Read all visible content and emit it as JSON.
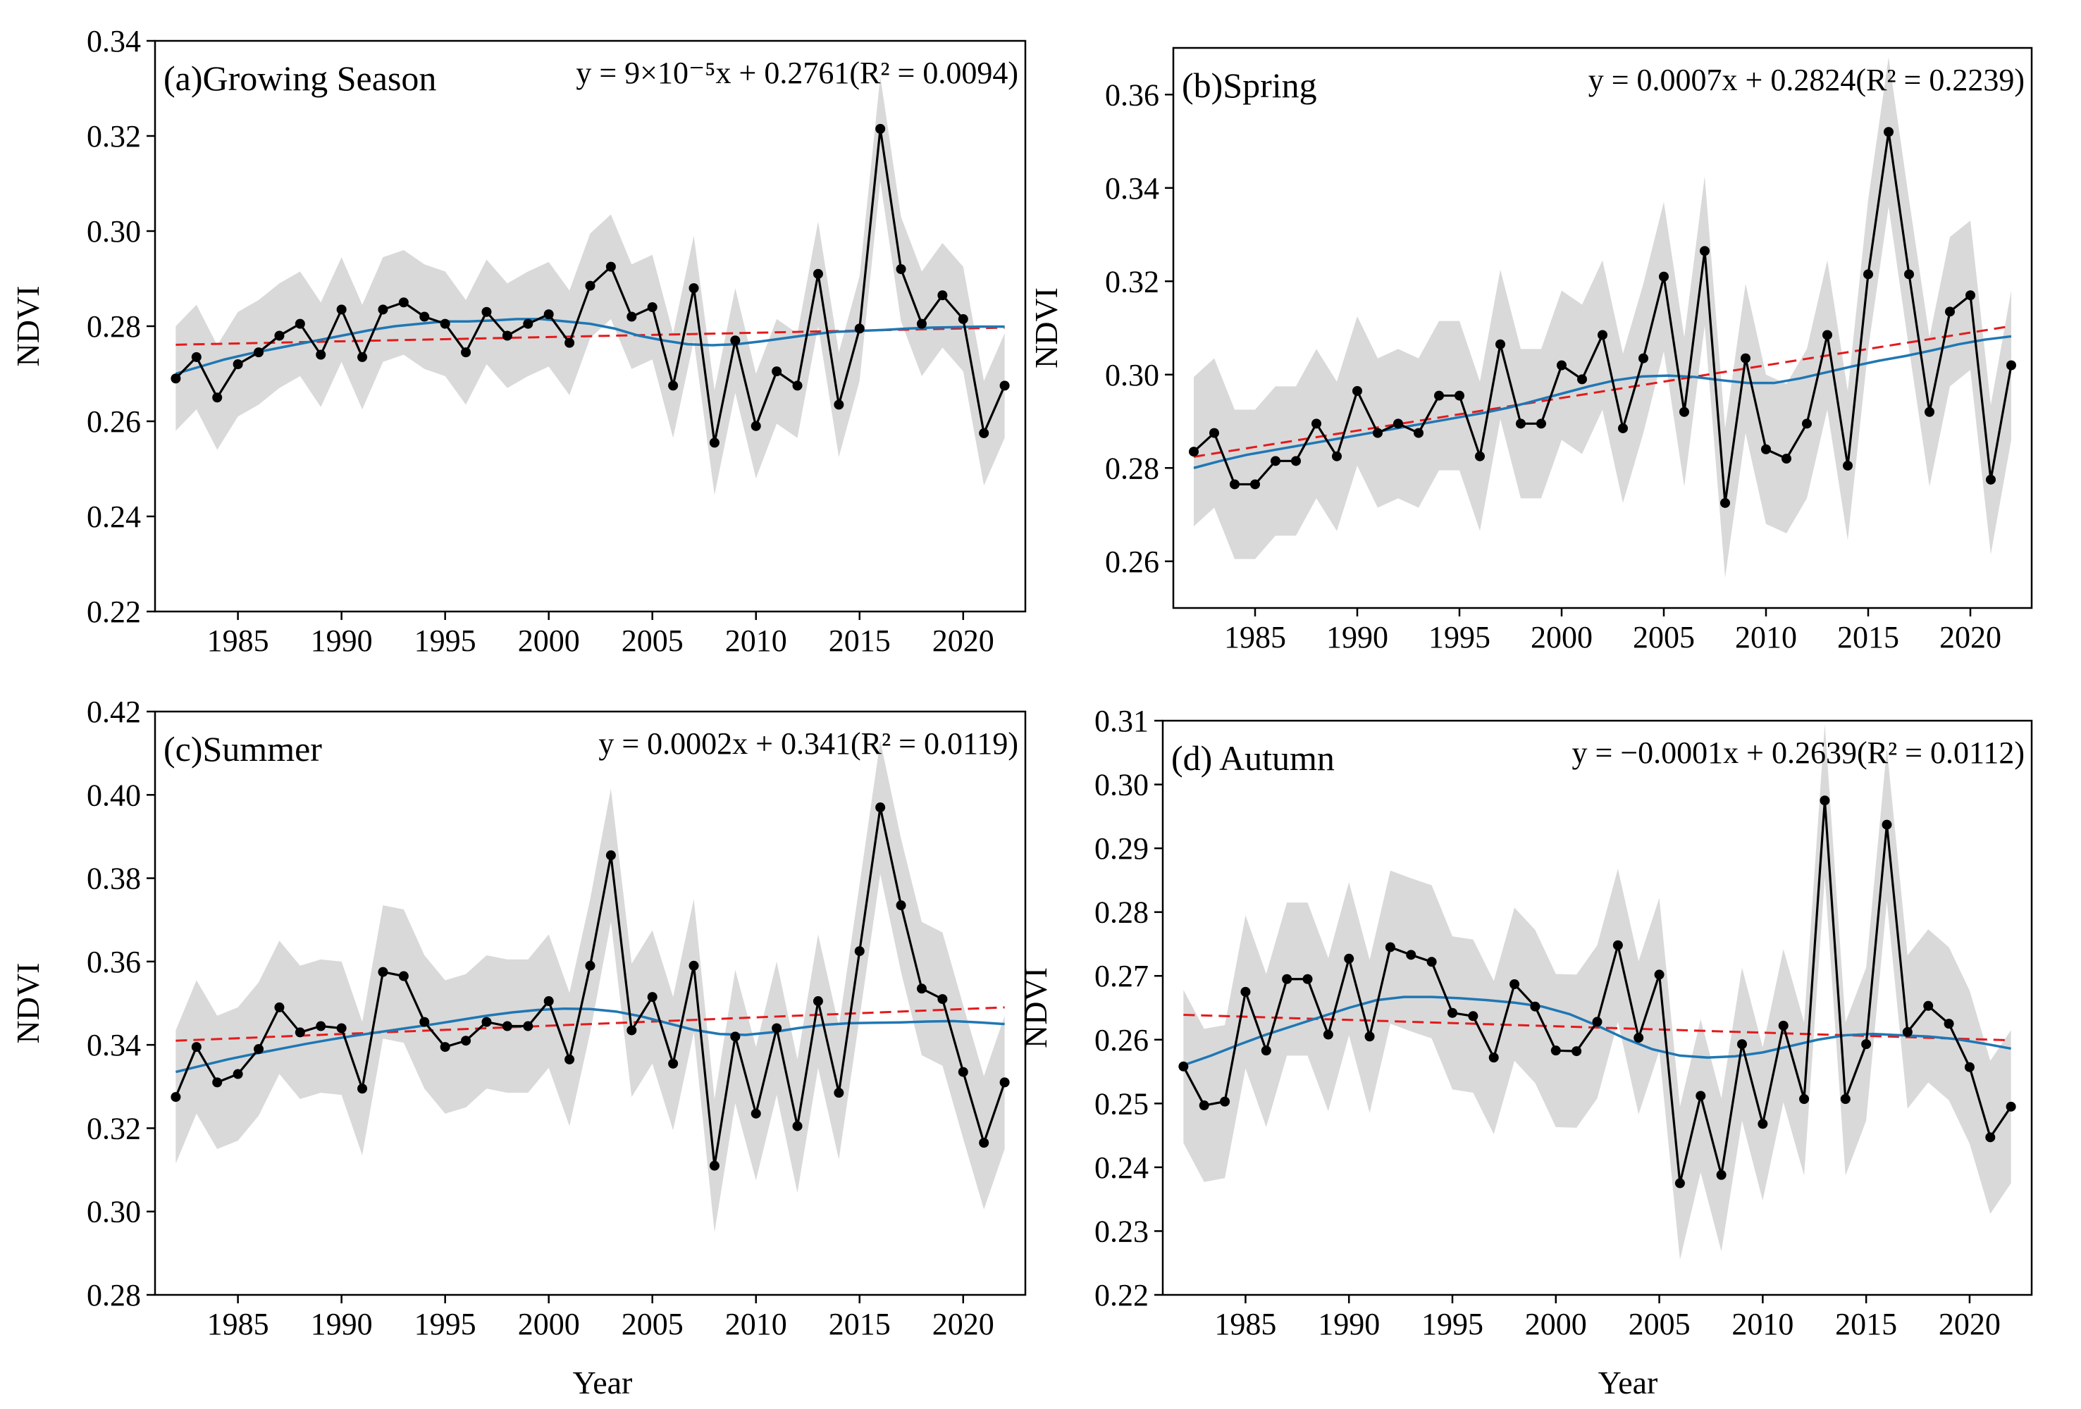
{
  "figure": {
    "colors": {
      "observed": "#000000",
      "trend": "#e41a1c",
      "smooth": "#1f77b4",
      "band": "#d9d9d9"
    }
  },
  "chart_data": [
    {
      "type": "line",
      "panel_label": "(a)Growing Season",
      "equation": "y = 9×10⁻⁵x + 0.2761(R² = 0.0094)",
      "xlabel": "",
      "ylabel": "NDVI",
      "xlim": [
        1981,
        2023
      ],
      "ylim": [
        0.22,
        0.34
      ],
      "x_ticks": [
        1985,
        1990,
        1995,
        2000,
        2005,
        2010,
        2015,
        2020
      ],
      "y_ticks": [
        "0.22",
        "0.24",
        "0.26",
        "0.28",
        "0.30",
        "0.32",
        "0.34"
      ],
      "x": [
        1982,
        1983,
        1984,
        1985,
        1986,
        1987,
        1988,
        1989,
        1990,
        1991,
        1992,
        1993,
        1994,
        1995,
        1996,
        1997,
        1998,
        1999,
        2000,
        2001,
        2002,
        2003,
        2004,
        2005,
        2006,
        2007,
        2008,
        2009,
        2010,
        2011,
        2012,
        2013,
        2014,
        2015,
        2016,
        2017,
        2018,
        2019,
        2020,
        2021,
        2022
      ],
      "series": [
        {
          "values": [
            0.269,
            0.2735,
            0.265,
            0.272,
            0.2745,
            0.278,
            0.2805,
            0.274,
            0.2835,
            0.2735,
            0.2835,
            0.285,
            0.282,
            0.2805,
            0.2745,
            0.283,
            0.278,
            0.2805,
            0.2825,
            0.2765,
            0.2885,
            0.2925,
            0.282,
            0.284,
            0.2675,
            0.288,
            0.2555,
            0.277,
            0.259,
            0.2705,
            0.2675,
            0.291,
            0.2635,
            0.2795,
            0.3215,
            0.292,
            0.2805,
            0.2865,
            0.2815,
            0.2575,
            0.2675
          ]
        }
      ],
      "band_half_width": 0.011,
      "trend_line": {
        "slope": 9e-05,
        "intercept": 0.2761
      },
      "smooth": [
        0.27,
        0.2715,
        0.273,
        0.2742,
        0.2752,
        0.2762,
        0.2772,
        0.2782,
        0.2792,
        0.28,
        0.2805,
        0.281,
        0.281,
        0.2812,
        0.2815,
        0.2815,
        0.281,
        0.2805,
        0.2795,
        0.278,
        0.277,
        0.2762,
        0.276,
        0.2762,
        0.2768,
        0.2775,
        0.2782,
        0.2788,
        0.279,
        0.2792,
        0.2795,
        0.2797,
        0.2798,
        0.2799,
        0.2799
      ]
    },
    {
      "type": "line",
      "panel_label": "(b)Spring",
      "equation": "y = 0.0007x + 0.2824(R² = 0.2239)",
      "xlabel": "",
      "ylabel": "NDVI",
      "xlim": [
        1981,
        2023
      ],
      "ylim": [
        0.25,
        0.37
      ],
      "x_ticks": [
        1985,
        1990,
        1995,
        2000,
        2005,
        2010,
        2015,
        2020
      ],
      "y_ticks": [
        "0.26",
        "0.28",
        "0.30",
        "0.32",
        "0.34",
        "0.36"
      ],
      "x": [
        1982,
        1983,
        1984,
        1985,
        1986,
        1987,
        1988,
        1989,
        1990,
        1991,
        1992,
        1993,
        1994,
        1995,
        1996,
        1997,
        1998,
        1999,
        2000,
        2001,
        2002,
        2003,
        2004,
        2005,
        2006,
        2007,
        2008,
        2009,
        2010,
        2011,
        2012,
        2013,
        2014,
        2015,
        2016,
        2017,
        2018,
        2019,
        2020,
        2021,
        2022
      ],
      "series": [
        {
          "values": [
            0.2835,
            0.2875,
            0.2765,
            0.2765,
            0.2815,
            0.2815,
            0.2895,
            0.2825,
            0.2965,
            0.2875,
            0.2895,
            0.2875,
            0.2955,
            0.2955,
            0.2825,
            0.3065,
            0.2895,
            0.2895,
            0.302,
            0.299,
            0.3085,
            0.2885,
            0.3035,
            0.321,
            0.292,
            0.3265,
            0.2725,
            0.3035,
            0.284,
            0.282,
            0.2895,
            0.3085,
            0.2805,
            0.3215,
            0.352,
            0.3215,
            0.292,
            0.3135,
            0.317,
            0.2775,
            0.302
          ]
        }
      ],
      "band_half_width": 0.016,
      "trend_line": {
        "slope": 0.0007,
        "intercept": 0.2824
      },
      "smooth": [
        0.28,
        0.2815,
        0.2828,
        0.2838,
        0.2848,
        0.2858,
        0.2868,
        0.2878,
        0.2888,
        0.2898,
        0.2908,
        0.2918,
        0.293,
        0.2945,
        0.296,
        0.2975,
        0.2988,
        0.2996,
        0.2998,
        0.2995,
        0.2988,
        0.2982,
        0.2982,
        0.2992,
        0.3005,
        0.3018,
        0.303,
        0.304,
        0.3052,
        0.3065,
        0.3075,
        0.3082
      ]
    },
    {
      "type": "line",
      "panel_label": "(c)Summer",
      "equation": "y = 0.0002x + 0.341(R² = 0.0119)",
      "xlabel": "",
      "ylabel": "NDVI",
      "xlim": [
        1981,
        2023
      ],
      "ylim": [
        0.28,
        0.42
      ],
      "x_ticks": [
        1985,
        1990,
        1995,
        2000,
        2005,
        2010,
        2015,
        2020
      ],
      "y_ticks": [
        "0.28",
        "0.30",
        "0.32",
        "0.34",
        "0.36",
        "0.38",
        "0.40",
        "0.42"
      ],
      "x": [
        1982,
        1983,
        1984,
        1985,
        1986,
        1987,
        1988,
        1989,
        1990,
        1991,
        1992,
        1993,
        1994,
        1995,
        1996,
        1997,
        1998,
        1999,
        2000,
        2001,
        2002,
        2003,
        2004,
        2005,
        2006,
        2007,
        2008,
        2009,
        2010,
        2011,
        2012,
        2013,
        2014,
        2015,
        2016,
        2017,
        2018,
        2019,
        2020,
        2021,
        2022
      ],
      "series": [
        {
          "values": [
            0.3275,
            0.3395,
            0.331,
            0.333,
            0.339,
            0.349,
            0.343,
            0.3445,
            0.344,
            0.3295,
            0.3575,
            0.3565,
            0.3455,
            0.3395,
            0.341,
            0.3455,
            0.3445,
            0.3445,
            0.3505,
            0.3365,
            0.359,
            0.3855,
            0.3435,
            0.3515,
            0.3355,
            0.359,
            0.311,
            0.342,
            0.3235,
            0.344,
            0.3205,
            0.3505,
            0.3285,
            0.3625,
            0.397,
            0.3735,
            0.3535,
            0.351,
            0.3335,
            0.3165,
            0.331
          ]
        }
      ],
      "band_half_width": 0.016,
      "trend_line": {
        "slope": 0.0002,
        "intercept": 0.341
      },
      "smooth": [
        0.3335,
        0.335,
        0.3365,
        0.3378,
        0.339,
        0.3402,
        0.3413,
        0.3423,
        0.3432,
        0.3441,
        0.345,
        0.346,
        0.347,
        0.3478,
        0.3484,
        0.3487,
        0.3486,
        0.348,
        0.3468,
        0.3452,
        0.3436,
        0.3426,
        0.3424,
        0.343,
        0.344,
        0.3448,
        0.3452,
        0.3453,
        0.3454,
        0.3456,
        0.3457,
        0.3454,
        0.345
      ]
    },
    {
      "type": "line",
      "panel_label": "(d) Autumn",
      "equation": "y = −0.0001x + 0.2639(R² = 0.0112)",
      "xlabel": "",
      "ylabel": "NDVI",
      "xlim": [
        1981,
        2023
      ],
      "ylim": [
        0.22,
        0.31
      ],
      "x_ticks": [
        1985,
        1990,
        1995,
        2000,
        2005,
        2010,
        2015,
        2020
      ],
      "y_ticks": [
        "0.22",
        "0.23",
        "0.24",
        "0.25",
        "0.26",
        "0.27",
        "0.28",
        "0.29",
        "0.30",
        "0.31"
      ],
      "x": [
        1982,
        1983,
        1984,
        1985,
        1986,
        1987,
        1988,
        1989,
        1990,
        1991,
        1992,
        1993,
        1994,
        1995,
        1996,
        1997,
        1998,
        1999,
        2000,
        2001,
        2002,
        2003,
        2004,
        2005,
        2006,
        2007,
        2008,
        2009,
        2010,
        2011,
        2012,
        2013,
        2014,
        2015,
        2016,
        2017,
        2018,
        2019,
        2020,
        2021,
        2022
      ],
      "series": [
        {
          "values": [
            0.2558,
            0.2497,
            0.2503,
            0.2675,
            0.2583,
            0.2695,
            0.2695,
            0.2608,
            0.2727,
            0.2605,
            0.2745,
            0.2733,
            0.2722,
            0.2642,
            0.2637,
            0.2572,
            0.2687,
            0.2652,
            0.2583,
            0.2582,
            0.2628,
            0.2748,
            0.2603,
            0.2702,
            0.2375,
            0.2512,
            0.2388,
            0.2593,
            0.2468,
            0.2622,
            0.2507,
            0.2975,
            0.2507,
            0.2593,
            0.2937,
            0.2612,
            0.2653,
            0.2625,
            0.2557,
            0.2447,
            0.2495
          ]
        }
      ],
      "band_half_width": 0.012,
      "trend_line": {
        "slope": -0.0001,
        "intercept": 0.2639
      },
      "smooth": [
        0.256,
        0.2575,
        0.2592,
        0.2608,
        0.2622,
        0.2636,
        0.265,
        0.2662,
        0.2667,
        0.2667,
        0.2665,
        0.2662,
        0.2658,
        0.2652,
        0.264,
        0.2622,
        0.2602,
        0.2585,
        0.2575,
        0.2572,
        0.2574,
        0.258,
        0.259,
        0.26,
        0.2607,
        0.2609,
        0.2607,
        0.2605,
        0.2601,
        0.2594,
        0.2586
      ]
    }
  ],
  "shared_xlabel": "Year"
}
